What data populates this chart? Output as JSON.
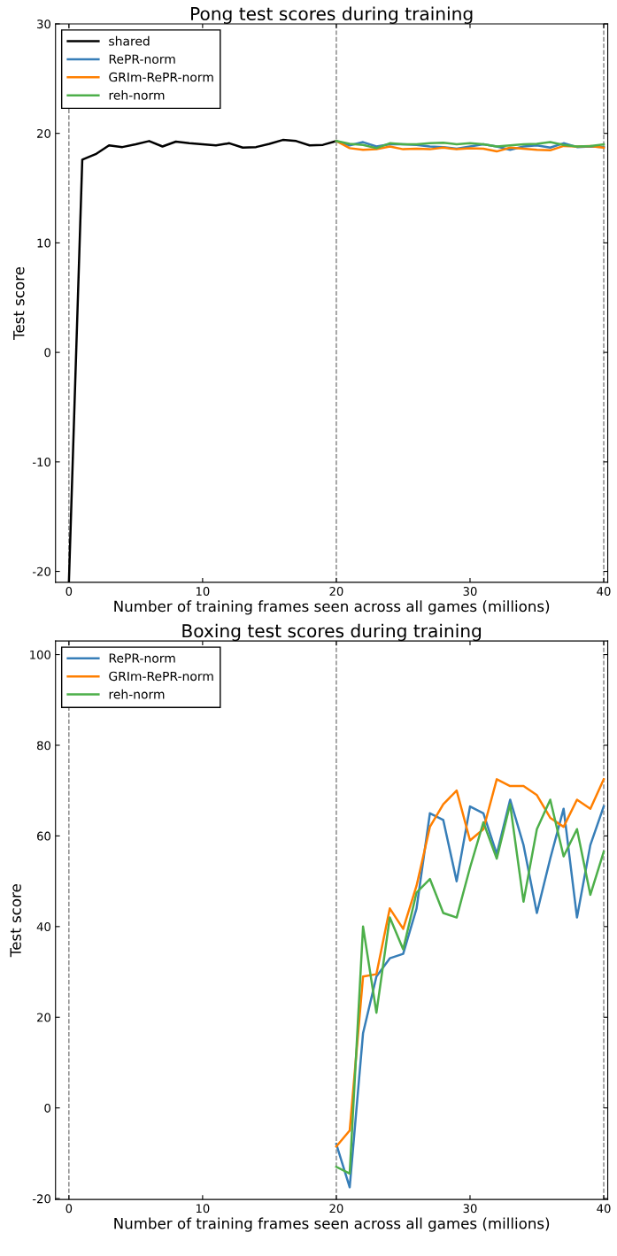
{
  "chart_data": [
    {
      "type": "line",
      "title": "Pong test scores during training",
      "xlabel": "Number of training frames seen across all games (millions)",
      "ylabel": "Test score",
      "xlim": [
        -1,
        40.3
      ],
      "ylim": [
        -21,
        30
      ],
      "xticks": [
        0,
        10,
        20,
        30,
        40
      ],
      "yticks": [
        -20,
        -10,
        0,
        10,
        20,
        30
      ],
      "legend": "top left",
      "grid": false,
      "line_style": "solid",
      "marker": "none",
      "series": [
        {
          "name": "shared",
          "color": "#000000",
          "x": [
            0,
            1,
            2,
            3,
            4,
            5,
            6,
            7,
            8,
            9,
            10,
            11,
            12,
            13,
            14,
            15,
            16,
            17,
            18,
            19,
            20
          ],
          "values": [
            -21,
            17.6,
            18.1,
            18.9,
            18.75,
            19.0,
            19.3,
            18.8,
            19.25,
            19.1,
            19.0,
            18.9,
            19.1,
            18.7,
            18.75,
            19.05,
            19.4,
            19.3,
            18.9,
            18.95,
            19.3
          ]
        },
        {
          "name": "RePR-norm",
          "color": "#377eb8",
          "x": [
            20,
            21,
            22,
            23,
            24,
            25,
            26,
            27,
            28,
            29,
            30,
            31,
            32,
            33,
            34,
            35,
            36,
            37,
            38,
            39,
            40
          ],
          "values": [
            19.3,
            18.9,
            19.2,
            18.8,
            19.0,
            19.0,
            18.95,
            18.8,
            18.75,
            18.6,
            18.8,
            19.0,
            18.8,
            18.5,
            18.8,
            18.9,
            18.7,
            19.1,
            18.75,
            18.8,
            18.75
          ]
        },
        {
          "name": "GRIm-RePR-norm",
          "color": "#ff7f00",
          "x": [
            20,
            21,
            22,
            23,
            24,
            25,
            26,
            27,
            28,
            29,
            30,
            31,
            32,
            33,
            34,
            35,
            36,
            37,
            38,
            39,
            40
          ],
          "values": [
            19.3,
            18.65,
            18.5,
            18.55,
            18.8,
            18.55,
            18.6,
            18.55,
            18.7,
            18.55,
            18.65,
            18.6,
            18.35,
            18.7,
            18.6,
            18.5,
            18.45,
            18.85,
            18.8,
            18.85,
            18.7
          ]
        },
        {
          "name": "reh-norm",
          "color": "#4daf4a",
          "x": [
            20,
            21,
            22,
            23,
            24,
            25,
            26,
            27,
            28,
            29,
            30,
            31,
            32,
            33,
            34,
            35,
            36,
            37,
            38,
            39,
            40
          ],
          "values": [
            19.3,
            19.05,
            18.95,
            18.65,
            19.1,
            19.0,
            19.0,
            19.1,
            19.15,
            19.0,
            19.1,
            19.0,
            18.8,
            18.9,
            19.0,
            19.05,
            19.2,
            18.95,
            18.8,
            18.85,
            19.0
          ]
        }
      ],
      "ref_lines": [
        {
          "axis": "x",
          "value": 0,
          "color": "#808080",
          "line_style": "dashed"
        },
        {
          "axis": "x",
          "value": 20,
          "color": "#808080",
          "line_style": "dashed"
        },
        {
          "axis": "x",
          "value": 40,
          "color": "#808080",
          "line_style": "dashed"
        }
      ]
    },
    {
      "type": "line",
      "title": "Boxing test scores during training",
      "xlabel": "Number of training frames seen across all games (millions)",
      "ylabel": "Test score",
      "xlim": [
        -1,
        40.3
      ],
      "ylim": [
        -20.2,
        103
      ],
      "xticks": [
        0,
        10,
        20,
        30,
        40
      ],
      "yticks": [
        -20,
        0,
        20,
        40,
        60,
        80,
        100
      ],
      "legend": "top left",
      "grid": false,
      "line_style": "solid",
      "marker": "none",
      "series": [
        {
          "name": "RePR-norm",
          "color": "#377eb8",
          "x": [
            20,
            21,
            22,
            23,
            24,
            25,
            26,
            27,
            28,
            29,
            30,
            31,
            32,
            33,
            34,
            35,
            36,
            37,
            38,
            39,
            40
          ],
          "values": [
            -8,
            -17.5,
            16.5,
            29,
            33,
            34,
            44,
            65,
            63.5,
            50,
            66.5,
            65,
            56,
            68,
            58,
            43,
            55,
            66,
            42,
            58,
            66.5
          ]
        },
        {
          "name": "GRIm-RePR-norm",
          "color": "#ff7f00",
          "x": [
            20,
            21,
            22,
            23,
            24,
            25,
            26,
            27,
            28,
            29,
            30,
            31,
            32,
            33,
            34,
            35,
            36,
            37,
            38,
            39,
            40
          ],
          "values": [
            -8.5,
            -5,
            29,
            29.5,
            44,
            39.5,
            49,
            62,
            67,
            70,
            59,
            61.5,
            72.5,
            71,
            71,
            69,
            64,
            62,
            68,
            66,
            72.5
          ]
        },
        {
          "name": "reh-norm",
          "color": "#4daf4a",
          "x": [
            20,
            21,
            22,
            23,
            24,
            25,
            26,
            27,
            28,
            29,
            30,
            31,
            32,
            33,
            34,
            35,
            36,
            37,
            38,
            39,
            40
          ],
          "values": [
            -13,
            -14.5,
            40,
            21,
            42,
            35,
            47.5,
            50.5,
            43,
            42,
            53,
            63,
            55,
            67,
            45.5,
            61.5,
            68,
            55.5,
            61.5,
            47,
            56.5
          ]
        }
      ],
      "ref_lines": [
        {
          "axis": "x",
          "value": 0,
          "color": "#808080",
          "line_style": "dashed"
        },
        {
          "axis": "x",
          "value": 20,
          "color": "#808080",
          "line_style": "dashed"
        },
        {
          "axis": "x",
          "value": 40,
          "color": "#808080",
          "line_style": "dashed"
        }
      ]
    }
  ]
}
